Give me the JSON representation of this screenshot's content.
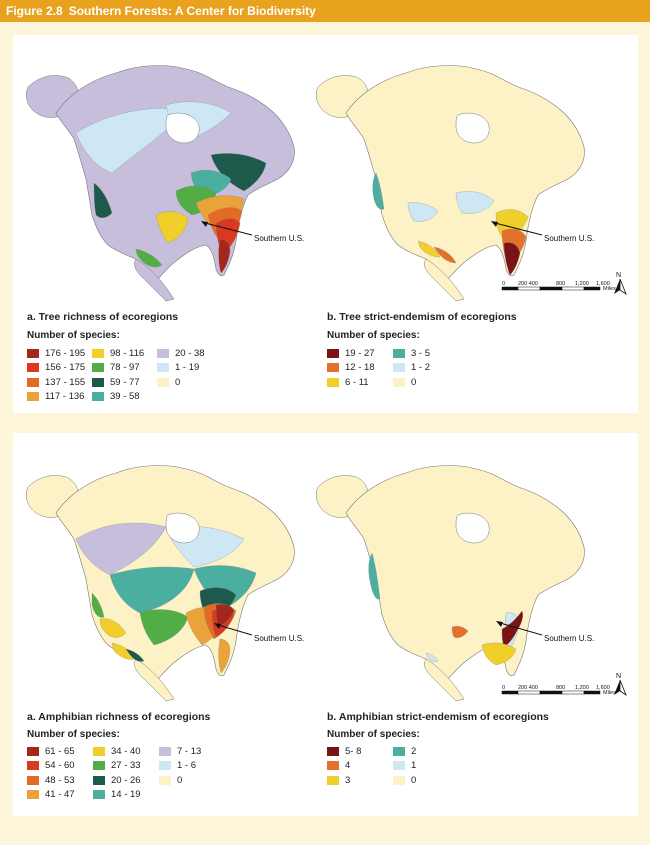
{
  "header": {
    "figure": "Figure 2.8",
    "title": "Southern Forests: A Center for Biodiversity"
  },
  "callout": "Southern U.S.",
  "scale": {
    "ticks": [
      "0",
      "200 400",
      "800",
      "1,200",
      "1,600"
    ],
    "unit": "Miles"
  },
  "north": "N",
  "legend_heading": "Number of species:",
  "panels": [
    {
      "caption": "a. Tree richness of ecoregions",
      "base_color": "#c7bedc",
      "legend": [
        [
          {
            "label": "176 - 195",
            "color": "#a3271b"
          },
          {
            "label": "156 - 175",
            "color": "#d8391f"
          },
          {
            "label": "137 - 155",
            "color": "#e46b24"
          },
          {
            "label": "117 - 136",
            "color": "#eaa33a"
          }
        ],
        [
          {
            "label": "98 - 116",
            "color": "#f0cf2a"
          },
          {
            "label": "78 - 97",
            "color": "#53ad46"
          },
          {
            "label": "59 - 77",
            "color": "#1d5a4b"
          },
          {
            "label": "39 - 58",
            "color": "#4aaea0"
          }
        ],
        [
          {
            "label": "20 - 38",
            "color": "#c7bedc"
          },
          {
            "label": "1 - 19",
            "color": "#cde8f4"
          },
          {
            "label": "0",
            "color": "#fdf1c6"
          }
        ]
      ]
    },
    {
      "caption": "b. Tree strict-endemism of ecoregions",
      "base_color": "#fdf1c6",
      "legend": [
        [
          {
            "label": "19 - 27",
            "color": "#7a1414"
          },
          {
            "label": "12 - 18",
            "color": "#e4712a"
          },
          {
            "label": "6 - 11",
            "color": "#f0cf2a"
          }
        ],
        [
          {
            "label": "3 - 5",
            "color": "#4aaea0"
          },
          {
            "label": "1 - 2",
            "color": "#cde8f4"
          },
          {
            "label": "0",
            "color": "#fdf1c6"
          }
        ]
      ]
    },
    {
      "caption": "a. Amphibian richness of ecoregions",
      "base_color": "#fdf1c6",
      "legend": [
        [
          {
            "label": "61 - 65",
            "color": "#a3271b"
          },
          {
            "label": "54 - 60",
            "color": "#d8391f"
          },
          {
            "label": "48 - 53",
            "color": "#e46b24"
          },
          {
            "label": "41 - 47",
            "color": "#eaa33a"
          }
        ],
        [
          {
            "label": "34 - 40",
            "color": "#f0cf2a"
          },
          {
            "label": "27 - 33",
            "color": "#53ad46"
          },
          {
            "label": "20 - 26",
            "color": "#1d5a4b"
          },
          {
            "label": "14 - 19",
            "color": "#4aaea0"
          }
        ],
        [
          {
            "label": "7 - 13",
            "color": "#c7bedc"
          },
          {
            "label": "1 - 6",
            "color": "#cde8f4"
          },
          {
            "label": "0",
            "color": "#fdf1c6"
          }
        ]
      ]
    },
    {
      "caption": "b. Amphibian strict-endemism of ecoregions",
      "base_color": "#fdf1c6",
      "legend": [
        [
          {
            "label": "5- 8",
            "color": "#7a1414"
          },
          {
            "label": "4",
            "color": "#e4712a"
          },
          {
            "label": "3",
            "color": "#f0cf2a"
          }
        ],
        [
          {
            "label": "2",
            "color": "#4aaea0"
          },
          {
            "label": "1",
            "color": "#cde8f4"
          },
          {
            "label": "0",
            "color": "#fdf1c6"
          }
        ]
      ]
    }
  ]
}
